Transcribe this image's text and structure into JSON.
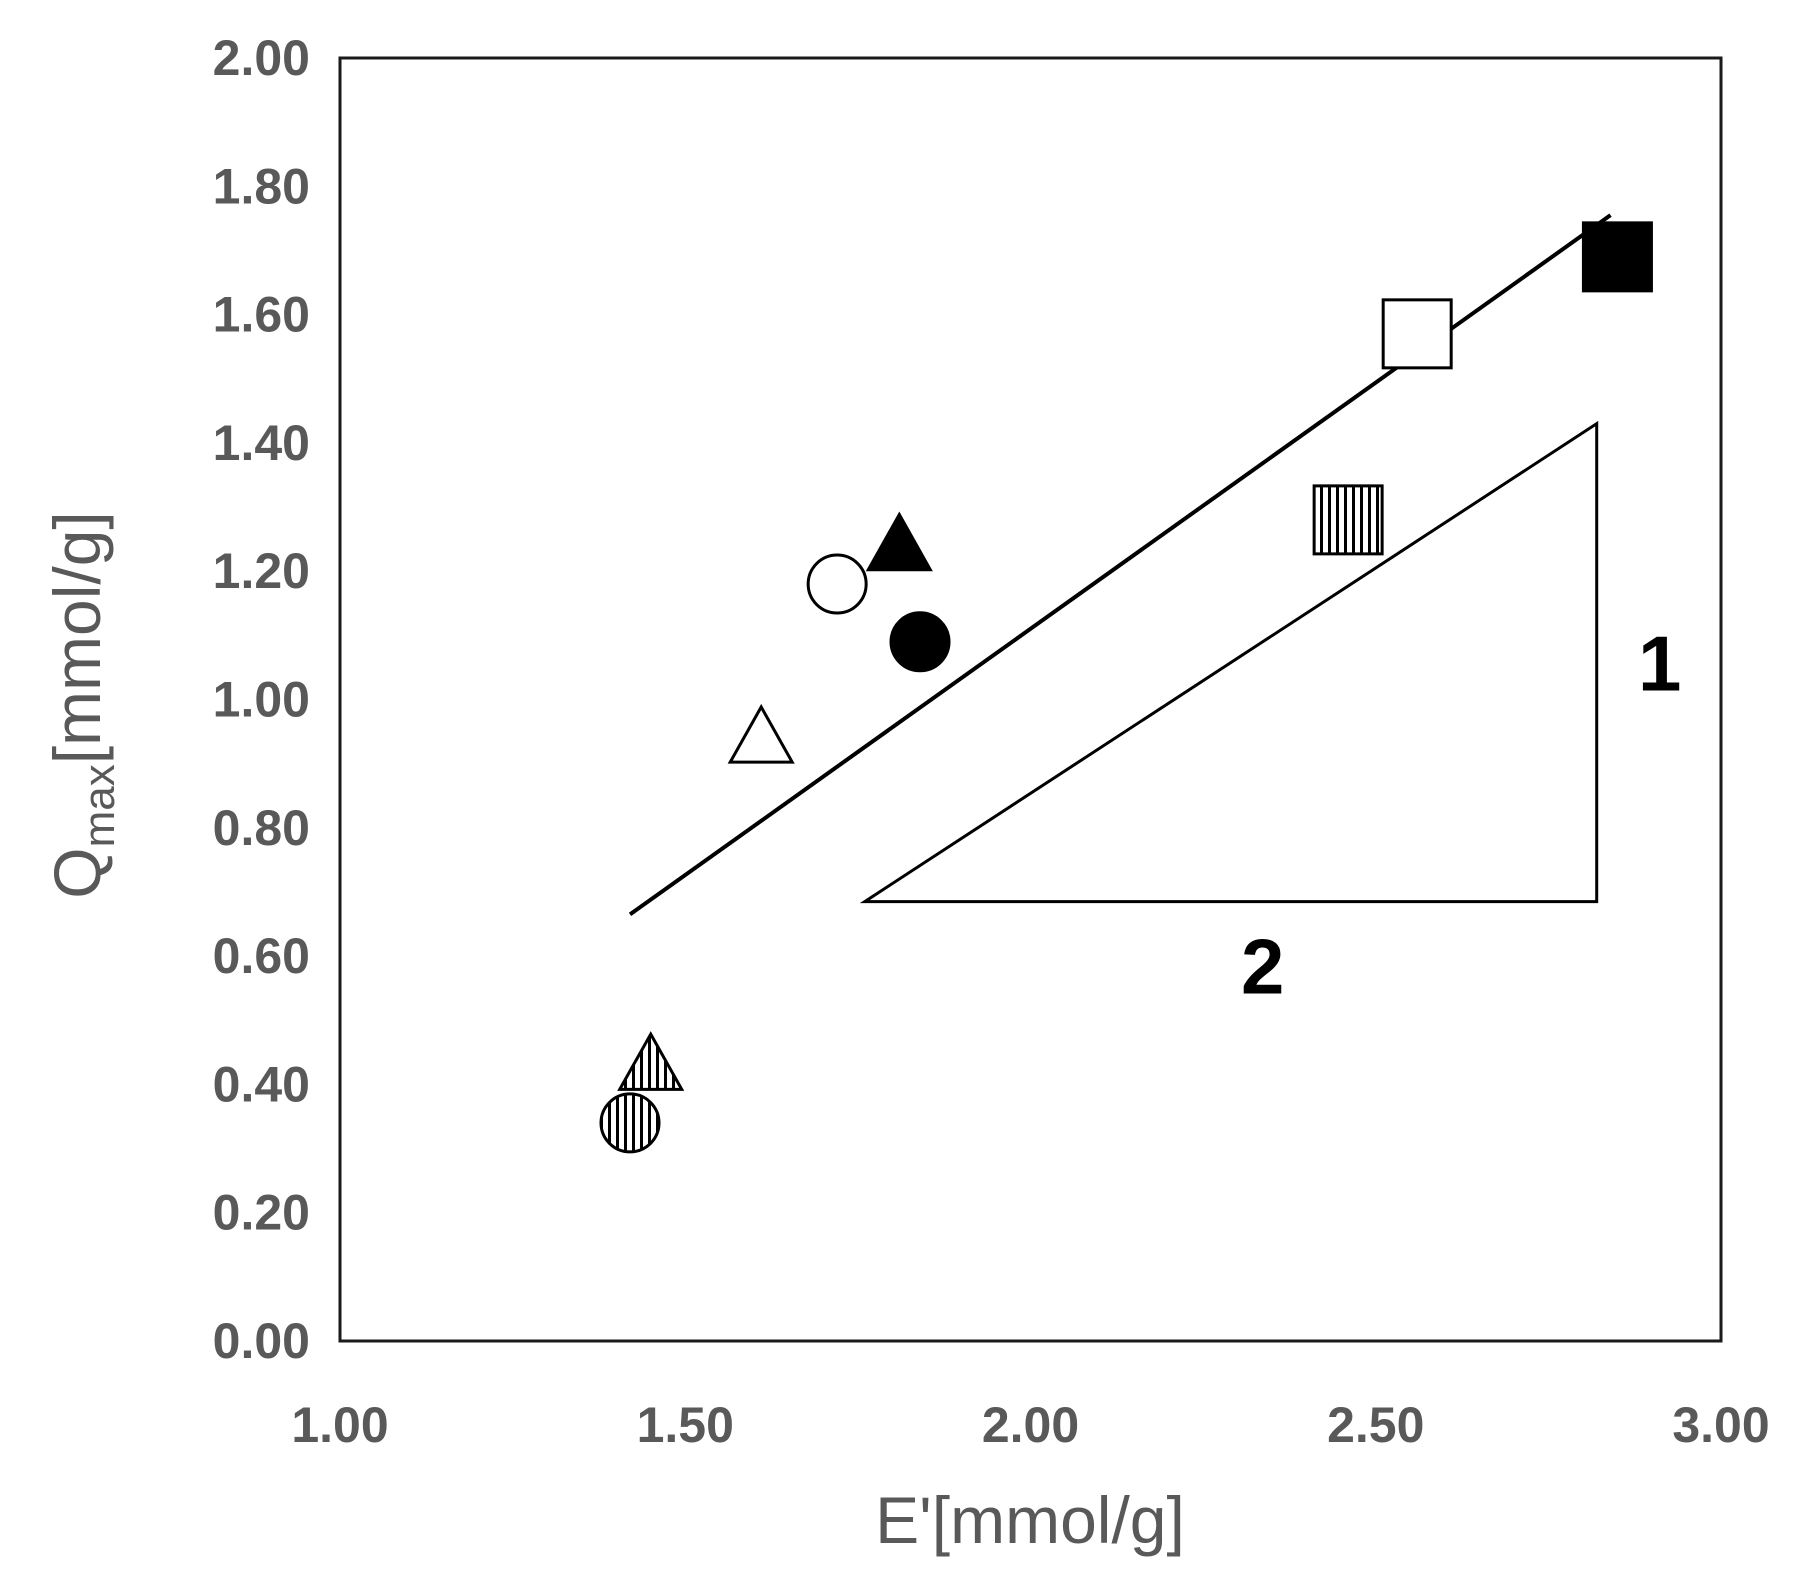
{
  "chart_data": {
    "type": "scatter",
    "title": "",
    "xlabel": "E'[mmol/g]",
    "ylabel": {
      "main": "Q",
      "sub": "max",
      "unit": "[mmol/g]"
    },
    "xlim": [
      1.0,
      3.0
    ],
    "ylim": [
      0.0,
      2.0
    ],
    "x_ticks": [
      "1.00",
      "1.50",
      "2.00",
      "2.50",
      "3.00"
    ],
    "y_ticks": [
      "0.00",
      "0.20",
      "0.40",
      "0.60",
      "0.80",
      "1.00",
      "1.20",
      "1.40",
      "1.60",
      "1.80",
      "2.00"
    ],
    "grid": false,
    "legend": "none",
    "points": [
      {
        "x": 1.42,
        "y": 0.34,
        "marker": "circle",
        "fill": "hatched"
      },
      {
        "x": 1.45,
        "y": 0.43,
        "marker": "triangle",
        "fill": "hatched"
      },
      {
        "x": 1.61,
        "y": 0.94,
        "marker": "triangle",
        "fill": "open"
      },
      {
        "x": 1.72,
        "y": 1.18,
        "marker": "circle",
        "fill": "open"
      },
      {
        "x": 1.81,
        "y": 1.24,
        "marker": "triangle",
        "fill": "filled"
      },
      {
        "x": 1.84,
        "y": 1.09,
        "marker": "circle",
        "fill": "filled"
      },
      {
        "x": 2.46,
        "y": 1.28,
        "marker": "square",
        "fill": "hatched"
      },
      {
        "x": 2.56,
        "y": 1.57,
        "marker": "square",
        "fill": "open"
      },
      {
        "x": 2.85,
        "y": 1.69,
        "marker": "square",
        "fill": "filled"
      }
    ],
    "fit_line": {
      "x": [
        1.42,
        2.84
      ],
      "y": [
        0.665,
        1.755
      ]
    },
    "slope_triangle": {
      "vertices": [
        [
          1.76,
          0.685
        ],
        [
          2.82,
          0.685
        ],
        [
          2.82,
          1.43
        ]
      ],
      "labels": {
        "vertical": "1",
        "horizontal": "2"
      }
    },
    "colors": {
      "axis": "#000000",
      "text": "#595959",
      "marker": "#000000",
      "background": "#ffffff"
    }
  }
}
